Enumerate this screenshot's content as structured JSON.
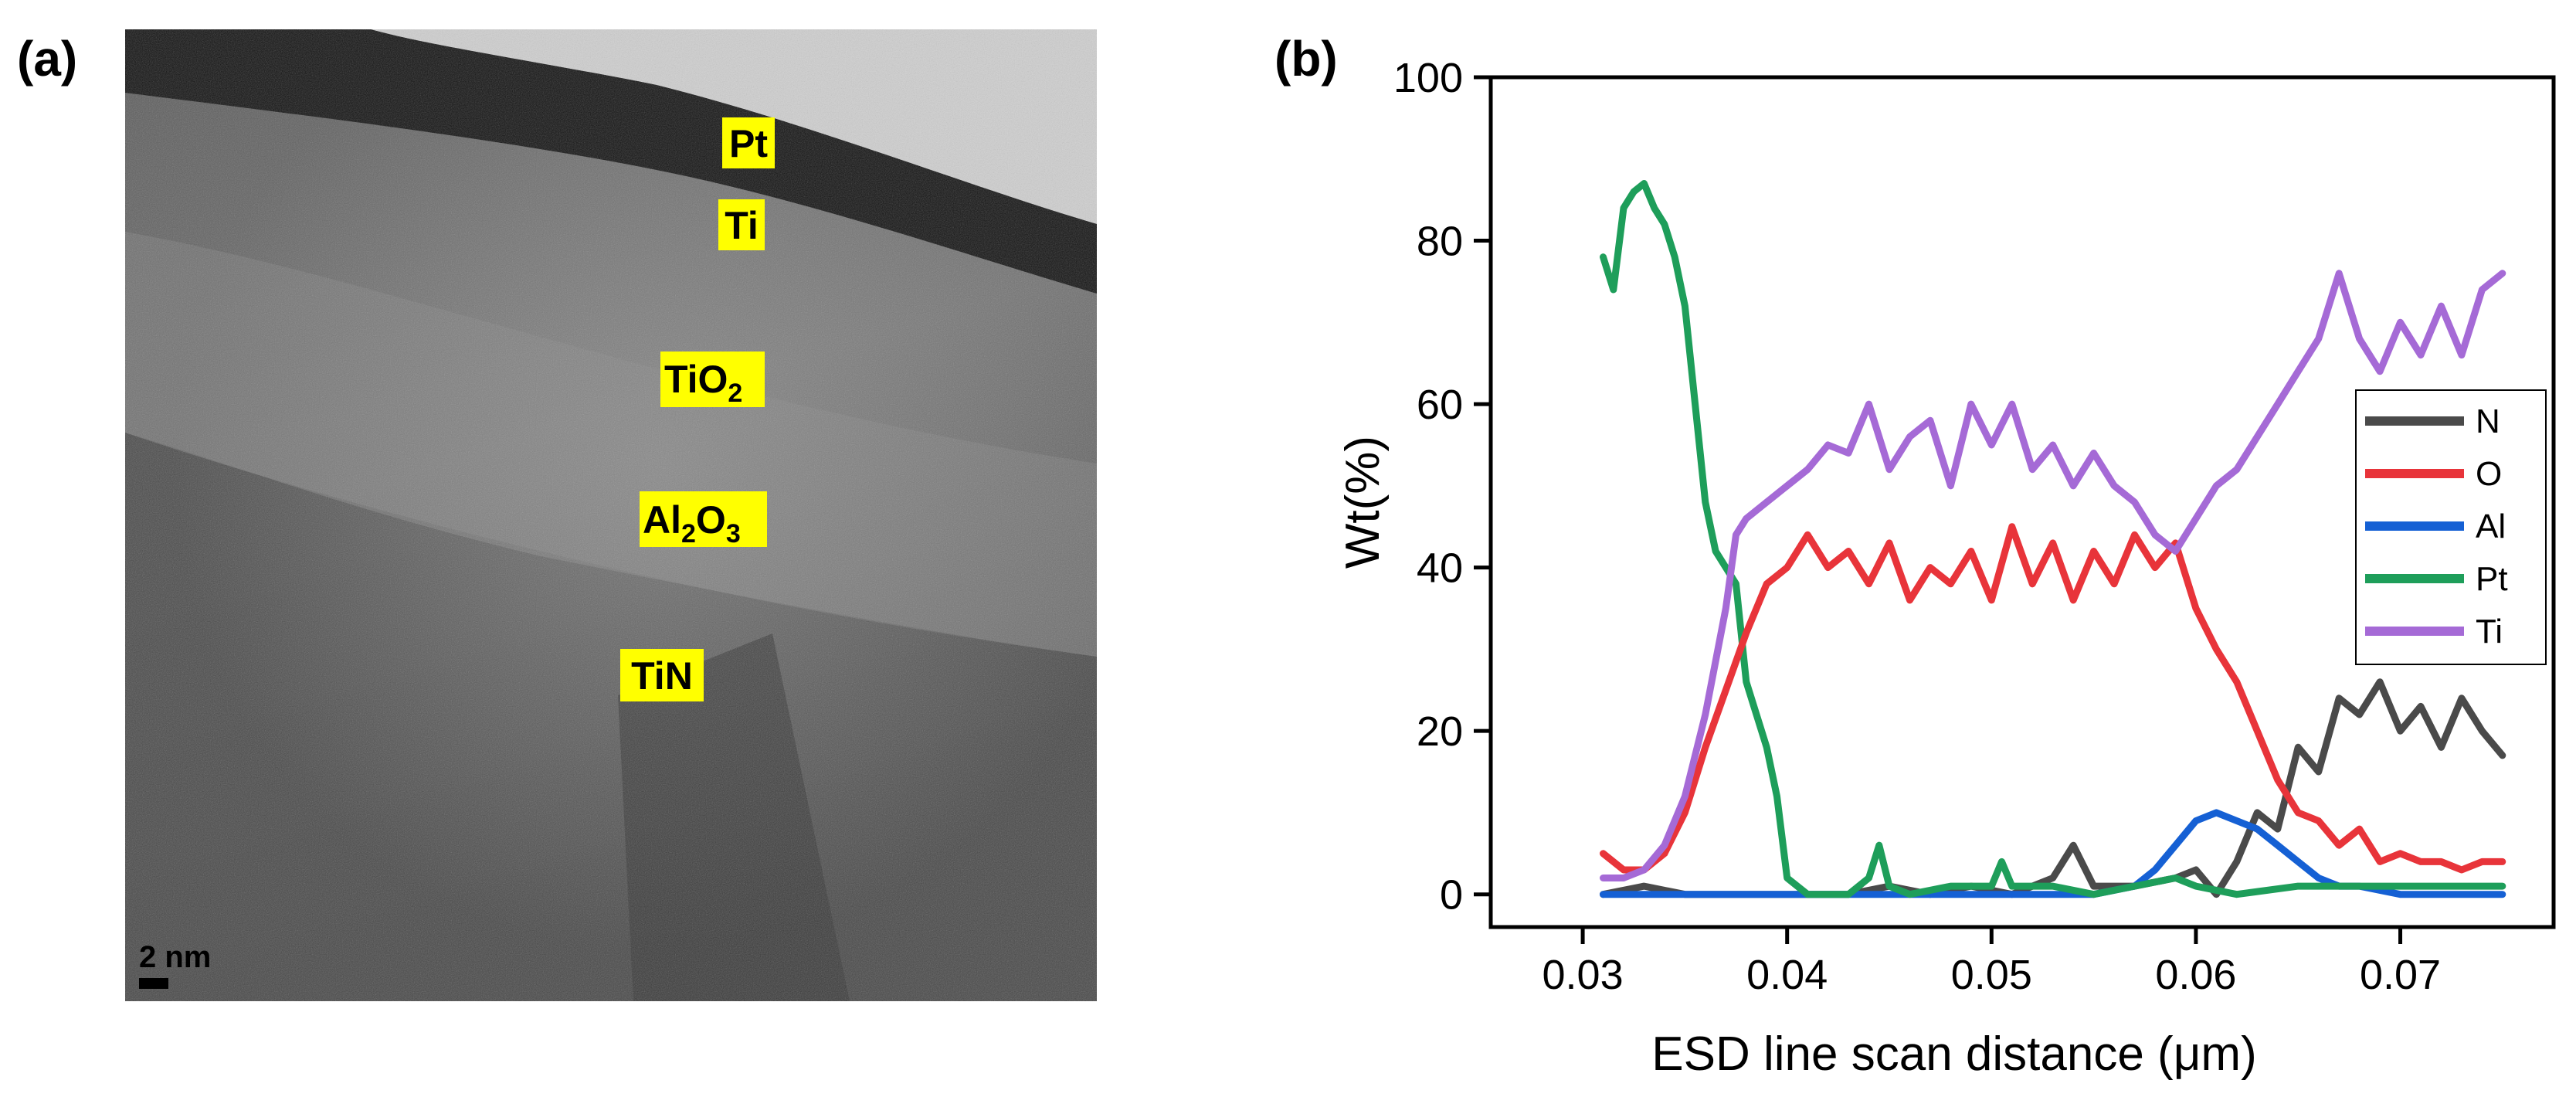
{
  "panel_a": {
    "label": "(a)",
    "layers": [
      {
        "name": "Pt"
      },
      {
        "name": "Ti"
      },
      {
        "base": "TiO",
        "sub1": "2"
      },
      {
        "base1": "Al",
        "sub1": "2",
        "base2": "O",
        "sub2": "3"
      },
      {
        "name": "TiN"
      }
    ],
    "scale_bar": "2 nm"
  },
  "panel_b": {
    "label": "(b)"
  },
  "chart_data": {
    "type": "line",
    "title": "",
    "xlabel": "ESD line scan distance (μm)",
    "ylabel": "Wt(%)",
    "xlim": [
      0.0255,
      0.0775
    ],
    "ylim": [
      -4,
      100
    ],
    "xticks": [
      0.03,
      0.04,
      0.05,
      0.06,
      0.07
    ],
    "yticks": [
      0,
      20,
      40,
      60,
      80,
      100
    ],
    "xtick_labels": [
      "0.03",
      "0.04",
      "0.05",
      "0.06",
      "0.07"
    ],
    "ytick_labels": [
      "0",
      "20",
      "40",
      "60",
      "80",
      "100"
    ],
    "legend_position": "right",
    "series": [
      {
        "name": "N",
        "color": "#4a4a4a",
        "x": [
          0.031,
          0.033,
          0.035,
          0.037,
          0.039,
          0.041,
          0.043,
          0.045,
          0.047,
          0.049,
          0.051,
          0.053,
          0.054,
          0.055,
          0.057,
          0.059,
          0.06,
          0.061,
          0.062,
          0.063,
          0.064,
          0.065,
          0.066,
          0.067,
          0.068,
          0.069,
          0.07,
          0.071,
          0.072,
          0.073,
          0.074,
          0.075
        ],
        "y": [
          0,
          1,
          0,
          0,
          0,
          0,
          0,
          1,
          0,
          1,
          0,
          2,
          6,
          1,
          1,
          2,
          3,
          0,
          4,
          10,
          8,
          18,
          15,
          24,
          22,
          26,
          20,
          23,
          18,
          24,
          20,
          17
        ]
      },
      {
        "name": "O",
        "color": "#e8343a",
        "x": [
          0.031,
          0.032,
          0.033,
          0.034,
          0.035,
          0.036,
          0.037,
          0.038,
          0.039,
          0.04,
          0.041,
          0.042,
          0.043,
          0.044,
          0.045,
          0.046,
          0.047,
          0.048,
          0.049,
          0.05,
          0.051,
          0.052,
          0.053,
          0.054,
          0.055,
          0.056,
          0.057,
          0.058,
          0.059,
          0.06,
          0.061,
          0.062,
          0.063,
          0.064,
          0.065,
          0.066,
          0.067,
          0.068,
          0.069,
          0.07,
          0.071,
          0.072,
          0.073,
          0.074,
          0.075
        ],
        "y": [
          5,
          3,
          3,
          5,
          10,
          18,
          25,
          32,
          38,
          40,
          44,
          40,
          42,
          38,
          43,
          36,
          40,
          38,
          42,
          36,
          45,
          38,
          43,
          36,
          42,
          38,
          44,
          40,
          43,
          35,
          30,
          26,
          20,
          14,
          10,
          9,
          6,
          8,
          4,
          5,
          4,
          4,
          3,
          4,
          4
        ]
      },
      {
        "name": "Al",
        "color": "#1560d4",
        "x": [
          0.031,
          0.035,
          0.04,
          0.045,
          0.05,
          0.055,
          0.057,
          0.058,
          0.059,
          0.06,
          0.061,
          0.062,
          0.063,
          0.064,
          0.065,
          0.066,
          0.067,
          0.068,
          0.07,
          0.072,
          0.075
        ],
        "y": [
          0,
          0,
          0,
          0,
          0,
          0,
          1,
          3,
          6,
          9,
          10,
          9,
          8,
          6,
          4,
          2,
          1,
          1,
          0,
          0,
          0
        ]
      },
      {
        "name": "Pt",
        "color": "#1e9e5a",
        "x": [
          0.031,
          0.0315,
          0.032,
          0.0325,
          0.033,
          0.0335,
          0.034,
          0.0345,
          0.035,
          0.0355,
          0.036,
          0.0365,
          0.037,
          0.0375,
          0.038,
          0.0385,
          0.039,
          0.0395,
          0.04,
          0.041,
          0.042,
          0.043,
          0.044,
          0.0445,
          0.045,
          0.046,
          0.048,
          0.05,
          0.0505,
          0.051,
          0.053,
          0.055,
          0.057,
          0.059,
          0.06,
          0.062,
          0.065,
          0.07,
          0.075
        ],
        "y": [
          78,
          74,
          84,
          86,
          87,
          84,
          82,
          78,
          72,
          60,
          48,
          42,
          40,
          38,
          26,
          22,
          18,
          12,
          2,
          0,
          0,
          0,
          2,
          6,
          1,
          0,
          1,
          1,
          4,
          1,
          1,
          0,
          1,
          2,
          1,
          0,
          1,
          1,
          1
        ]
      },
      {
        "name": "Ti",
        "color": "#a56ad6",
        "x": [
          0.031,
          0.032,
          0.033,
          0.034,
          0.035,
          0.036,
          0.037,
          0.0375,
          0.038,
          0.039,
          0.04,
          0.041,
          0.042,
          0.043,
          0.044,
          0.045,
          0.046,
          0.047,
          0.048,
          0.049,
          0.05,
          0.051,
          0.052,
          0.053,
          0.054,
          0.055,
          0.056,
          0.057,
          0.058,
          0.059,
          0.06,
          0.061,
          0.062,
          0.063,
          0.064,
          0.065,
          0.066,
          0.067,
          0.068,
          0.069,
          0.07,
          0.071,
          0.072,
          0.073,
          0.074,
          0.075
        ],
        "y": [
          2,
          2,
          3,
          6,
          12,
          22,
          35,
          44,
          46,
          48,
          50,
          52,
          55,
          54,
          60,
          52,
          56,
          58,
          50,
          60,
          55,
          60,
          52,
          55,
          50,
          54,
          50,
          48,
          44,
          42,
          46,
          50,
          52,
          56,
          60,
          64,
          68,
          76,
          68,
          64,
          70,
          66,
          72,
          66,
          74,
          76
        ]
      }
    ]
  }
}
